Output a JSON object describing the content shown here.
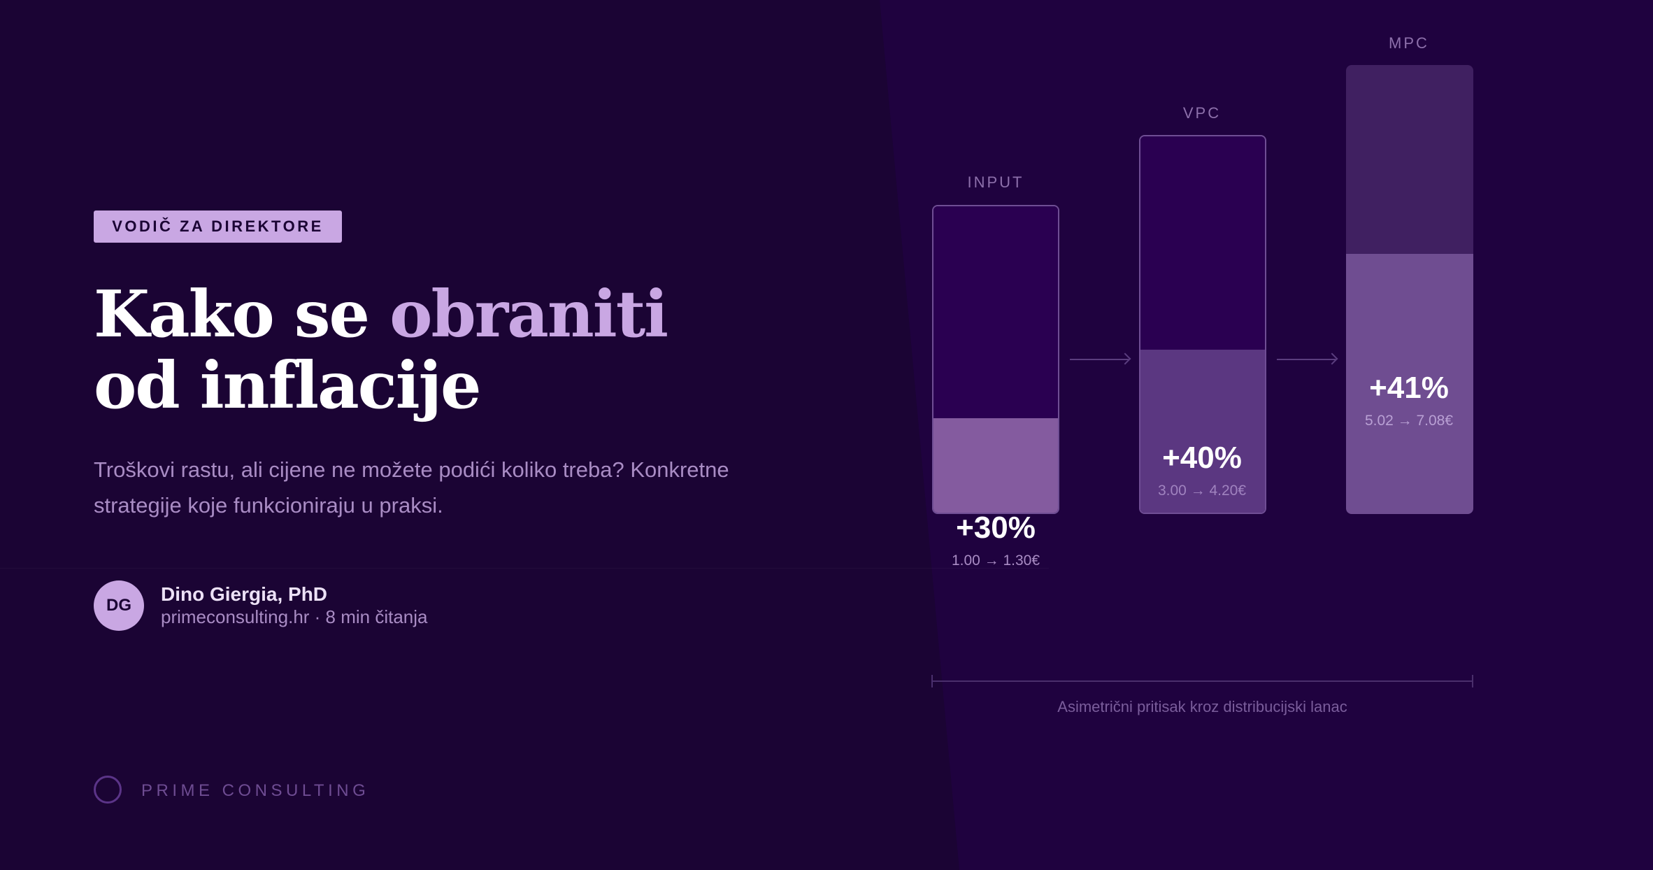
{
  "badge": "VODIČ ZA DIREKTORE",
  "title": {
    "line1_prefix": "Kako se ",
    "line1_accent": "obraniti",
    "line2": "od inflacije"
  },
  "subtitle_line1": "Troškovi rastu, ali cijene ne možete podići koliko treba? Konkretne",
  "subtitle_line2": "strategije koje funkcioniraju u praksi.",
  "author": {
    "initials": "DG",
    "name": "Dino Giergia, PhD",
    "meta": "primeconsulting.hr · 8 min čitanja"
  },
  "brand": {
    "name": "PRIME CONSULTING"
  },
  "colors": {
    "background": "#1b0434",
    "panel": "#1f023f",
    "accent": "#c9a7e3",
    "muted_text": "#a98cc4"
  },
  "columns": [
    {
      "label": "INPUT",
      "increase": "+30%",
      "change": "1.00 → 1.30€",
      "base": 1.0,
      "new": 1.3
    },
    {
      "label": "VPC",
      "increase": "+40%",
      "change": "3.00 → 4.20€",
      "base": 3.0,
      "new": 4.2
    },
    {
      "label": "MPC",
      "increase": "+41%",
      "change": "5.02 → 7.08€",
      "base": 5.02,
      "new": 7.08
    }
  ],
  "caption": "Asimetrični pritisak kroz distribucijski lanac"
}
